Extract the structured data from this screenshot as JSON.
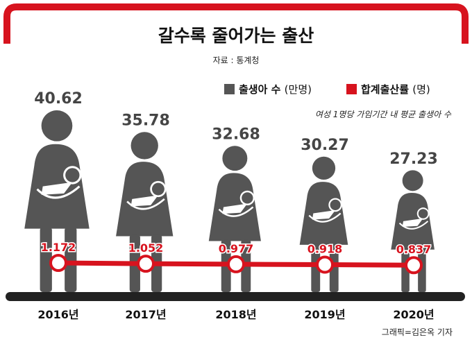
{
  "title": "갈수록 줄어가는 출산",
  "source": "자료 : 통계청",
  "legend": {
    "births": {
      "label": "출생아 수",
      "unit": "(만명)"
    },
    "tfr": {
      "label": "합계출산률",
      "unit": "(명)"
    }
  },
  "note": "여성 1명당 가임기간 내 평균 출생아 수",
  "credit": "그래픽=김은옥 기자",
  "colors": {
    "accent": "#d7131e",
    "figure": "#555555",
    "baseline": "#222222",
    "value_text": "#454545"
  },
  "chart_data": {
    "type": "bar",
    "categories": [
      "2016년",
      "2017년",
      "2018년",
      "2019년",
      "2020년"
    ],
    "series": [
      {
        "name": "출생아 수",
        "unit": "만명",
        "values": [
          40.62,
          35.78,
          32.68,
          30.27,
          27.23
        ],
        "labels": [
          "40.62",
          "35.78",
          "32.68",
          "30.27",
          "27.23"
        ]
      },
      {
        "name": "합계출산률",
        "unit": "명",
        "values": [
          1.172,
          1.052,
          0.977,
          0.918,
          0.837
        ],
        "labels": [
          "1.172",
          "1.052",
          "0.977",
          "0.918",
          "0.837"
        ]
      }
    ],
    "legend_position": "top-right"
  }
}
